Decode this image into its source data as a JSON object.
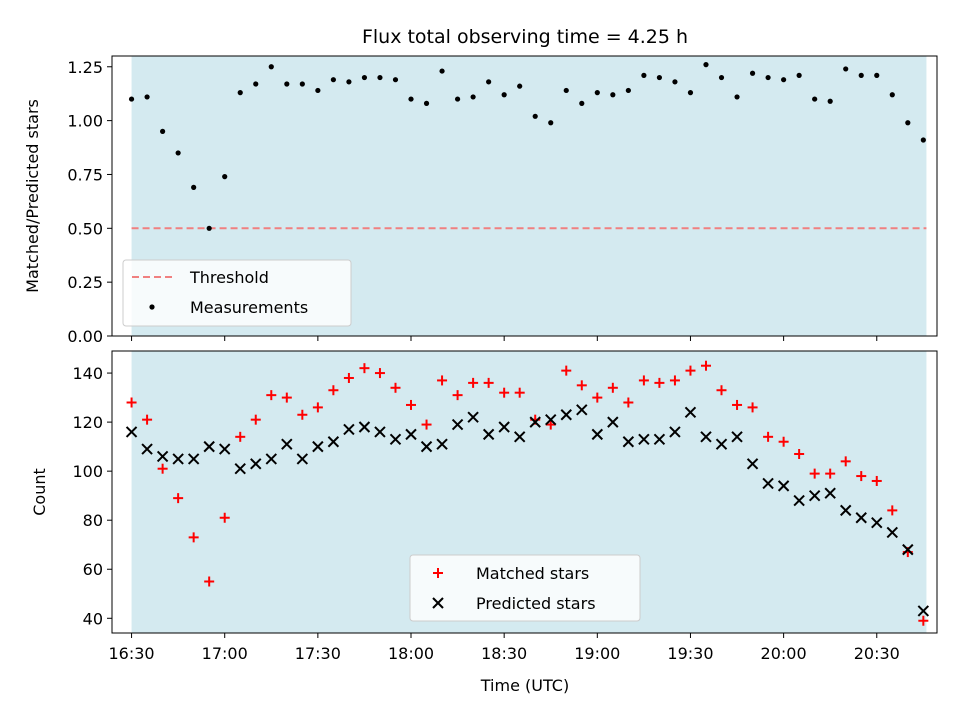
{
  "chart_data": [
    {
      "type": "scatter",
      "title": "Flux total observing time = 4.25 h",
      "xlabel": "",
      "ylabel": "Matched/Predicted stars",
      "xlim": [
        "16:24",
        "20:44"
      ],
      "ylim": [
        0,
        1.3
      ],
      "yticks": [
        "0.00",
        "0.25",
        "0.50",
        "0.75",
        "1.00",
        "1.25"
      ],
      "shaded_span": [
        "16:30",
        "20:46"
      ],
      "shade_color": "#d4eaf0",
      "legend_position": "lower left",
      "threshold": {
        "name": "Threshold",
        "value": 0.5,
        "color": "#f08080"
      },
      "series": [
        {
          "name": "Measurements",
          "color": "#000000",
          "marker": "dot",
          "x": [
            "16:30",
            "16:35",
            "16:40",
            "16:45",
            "16:50",
            "16:55",
            "17:00",
            "17:05",
            "17:10",
            "17:15",
            "17:20",
            "17:25",
            "17:30",
            "17:35",
            "17:40",
            "17:45",
            "17:50",
            "17:55",
            "18:00",
            "18:05",
            "18:10",
            "18:15",
            "18:20",
            "18:25",
            "18:30",
            "18:35",
            "18:40",
            "18:45",
            "18:50",
            "18:55",
            "19:00",
            "19:05",
            "19:10",
            "19:15",
            "19:20",
            "19:25",
            "19:30",
            "19:35",
            "19:40",
            "19:45",
            "19:50",
            "19:55",
            "20:00",
            "20:05",
            "20:10",
            "20:15",
            "20:20",
            "20:25",
            "20:30",
            "20:35",
            "20:40",
            "20:45"
          ],
          "y": [
            1.1,
            1.11,
            0.95,
            0.85,
            0.69,
            0.5,
            0.74,
            1.13,
            1.17,
            1.25,
            1.17,
            1.17,
            1.14,
            1.19,
            1.18,
            1.2,
            1.2,
            1.19,
            1.1,
            1.08,
            1.23,
            1.1,
            1.11,
            1.18,
            1.12,
            1.16,
            1.02,
            0.99,
            1.14,
            1.08,
            1.13,
            1.12,
            1.14,
            1.21,
            1.2,
            1.18,
            1.13,
            1.26,
            1.2,
            1.11,
            1.22,
            1.2,
            1.19,
            1.21,
            1.1,
            1.09,
            1.24,
            1.21,
            1.21,
            1.12,
            0.99,
            0.91
          ]
        }
      ]
    },
    {
      "type": "scatter",
      "title": "",
      "xlabel": "Time (UTC)",
      "ylabel": "Count",
      "xlim": [
        "16:24",
        "20:44"
      ],
      "ylim": [
        34,
        149
      ],
      "xticks": [
        "16:30",
        "17:00",
        "17:30",
        "18:00",
        "18:30",
        "19:00",
        "19:30",
        "20:00",
        "20:30"
      ],
      "yticks": [
        "40",
        "60",
        "80",
        "100",
        "120",
        "140"
      ],
      "shaded_span": [
        "16:30",
        "20:46"
      ],
      "shade_color": "#d4eaf0",
      "legend_position": "lower center",
      "x": [
        "16:30",
        "16:35",
        "16:40",
        "16:45",
        "16:50",
        "16:55",
        "17:00",
        "17:05",
        "17:10",
        "17:15",
        "17:20",
        "17:25",
        "17:30",
        "17:35",
        "17:40",
        "17:45",
        "17:50",
        "17:55",
        "18:00",
        "18:05",
        "18:10",
        "18:15",
        "18:20",
        "18:25",
        "18:30",
        "18:35",
        "18:40",
        "18:45",
        "18:50",
        "18:55",
        "19:00",
        "19:05",
        "19:10",
        "19:15",
        "19:20",
        "19:25",
        "19:30",
        "19:35",
        "19:40",
        "19:45",
        "19:50",
        "19:55",
        "20:00",
        "20:05",
        "20:10",
        "20:15",
        "20:20",
        "20:25",
        "20:30",
        "20:35",
        "20:40",
        "20:45"
      ],
      "series": [
        {
          "name": "Matched stars",
          "color": "#ff0000",
          "marker": "plus",
          "values": [
            128,
            121,
            101,
            89,
            73,
            55,
            81,
            114,
            121,
            131,
            130,
            123,
            126,
            133,
            138,
            142,
            140,
            134,
            127,
            119,
            137,
            131,
            136,
            136,
            132,
            132,
            121,
            119,
            141,
            135,
            130,
            134,
            128,
            137,
            136,
            137,
            141,
            143,
            133,
            127,
            126,
            114,
            112,
            107,
            99,
            99,
            104,
            98,
            96,
            84,
            67,
            39
          ]
        },
        {
          "name": "Predicted stars",
          "color": "#000000",
          "marker": "x",
          "values": [
            116,
            109,
            106,
            105,
            105,
            110,
            109,
            101,
            103,
            105,
            111,
            105,
            110,
            112,
            117,
            118,
            116,
            113,
            115,
            110,
            111,
            119,
            122,
            115,
            118,
            114,
            120,
            121,
            123,
            125,
            115,
            120,
            112,
            113,
            113,
            116,
            124,
            114,
            111,
            114,
            103,
            95,
            94,
            88,
            90,
            91,
            84,
            81,
            79,
            75,
            68,
            43
          ]
        }
      ]
    }
  ]
}
